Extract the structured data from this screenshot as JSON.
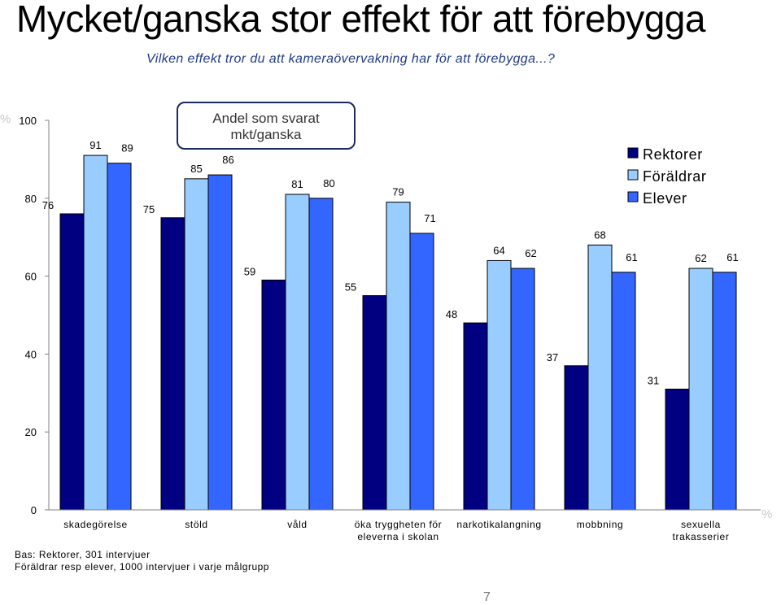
{
  "page": {
    "title": "Mycket/ganska stor effekt för att förebygga",
    "subtitle": "Vilken effekt tror du att kameraövervakning har för att förebygga...?",
    "footnote_lines": [
      "Bas: Rektorer, 301 intervjuer",
      "Föräldrar resp elever, 1000 intervjuer i varje målgrupp"
    ],
    "page_number": "7"
  },
  "chart_data": {
    "type": "bar",
    "categories": [
      [
        "skadegörelse"
      ],
      [
        "stöld"
      ],
      [
        "våld"
      ],
      [
        "öka tryggheten för",
        "eleverna i skolan"
      ],
      [
        "narkotikalangning"
      ],
      [
        "mobbning"
      ],
      [
        "sexuella",
        "trakasserier"
      ]
    ],
    "series": [
      {
        "name": "Rektorer",
        "values": [
          76,
          75,
          59,
          55,
          48,
          37,
          31
        ],
        "color": "#000080"
      },
      {
        "name": "Föräldrar",
        "values": [
          91,
          85,
          81,
          79,
          64,
          68,
          62
        ],
        "color": "#99ccff"
      },
      {
        "name": "Elever",
        "values": [
          89,
          86,
          80,
          71,
          62,
          61,
          61
        ],
        "color": "#3366ff"
      }
    ],
    "ylim": [
      0,
      100
    ],
    "yticks": [
      0,
      20,
      40,
      60,
      80,
      100
    ],
    "y_unit_top": "%",
    "x_unit_right": "%",
    "annotation": "Andel som svarat mkt/ganska",
    "legend_position": "top-right",
    "grid": false
  }
}
